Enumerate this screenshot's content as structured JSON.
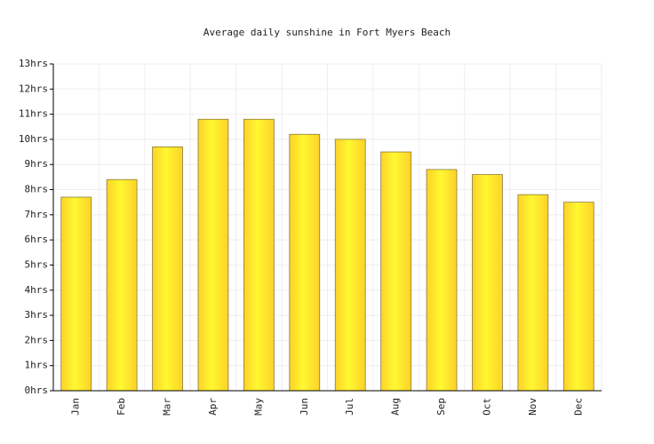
{
  "chart_data": {
    "type": "bar",
    "title": "Average daily sunshine in Fort Myers Beach",
    "categories": [
      "Jan",
      "Feb",
      "Mar",
      "Apr",
      "May",
      "Jun",
      "Jul",
      "Aug",
      "Sep",
      "Oct",
      "Nov",
      "Dec"
    ],
    "values": [
      7.7,
      8.4,
      9.7,
      10.8,
      10.8,
      10.2,
      10.0,
      9.5,
      8.8,
      8.6,
      7.8,
      7.5
    ],
    "color": "#fcd22a",
    "ylim": [
      0,
      13
    ],
    "yticks": [
      {
        "value": 0,
        "label": "0hrs"
      },
      {
        "value": 1,
        "label": "1hrs"
      },
      {
        "value": 2,
        "label": "2hrs"
      },
      {
        "value": 3,
        "label": "3hrs"
      },
      {
        "value": 4,
        "label": "4hrs"
      },
      {
        "value": 5,
        "label": "5hrs"
      },
      {
        "value": 6,
        "label": "6hrs"
      },
      {
        "value": 7,
        "label": "7hrs"
      },
      {
        "value": 8,
        "label": "8hrs"
      },
      {
        "value": 9,
        "label": "9hrs"
      },
      {
        "value": 10,
        "label": "10hrs"
      },
      {
        "value": 11,
        "label": "11hrs"
      },
      {
        "value": 12,
        "label": "12hrs"
      },
      {
        "value": 13,
        "label": "13hrs"
      }
    ],
    "grid": true
  }
}
